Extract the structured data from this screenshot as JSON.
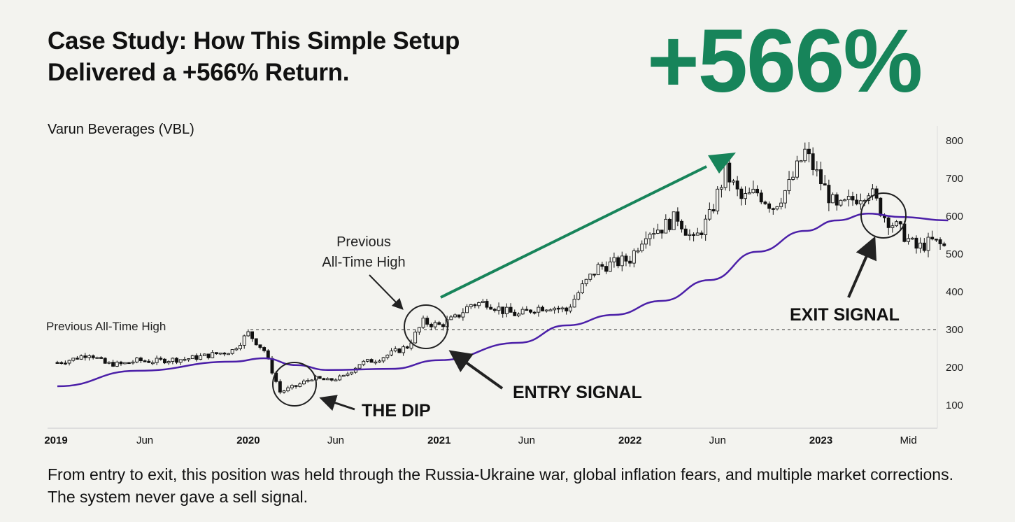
{
  "header": {
    "title_line1": "Case Study: How This Simple Setup",
    "title_line2": "Delivered a +566% Return.",
    "big_number": "+566%"
  },
  "caption": "From entry to exit, this position was held through the Russia-Ukraine war, global inflation fears, and multiple market corrections. The system never gave a sell signal.",
  "colors": {
    "accent_green": "#17845a",
    "moving_average": "#4b1fa8",
    "candles": "#111111",
    "background": "#f3f3ef"
  },
  "chart_data": {
    "type": "candlestick-line",
    "title": "Varun Beverages (VBL)",
    "y_ticks": [
      100,
      200,
      300,
      400,
      500,
      600,
      700,
      800
    ],
    "ylim": [
      50,
      840
    ],
    "x_ticks": [
      {
        "label": "2019",
        "date": "2019-01",
        "bold": true
      },
      {
        "label": "Jun",
        "date": "2019-07",
        "bold": false
      },
      {
        "label": "2020",
        "date": "2020-01",
        "bold": true
      },
      {
        "label": "Jun",
        "date": "2020-07",
        "bold": false
      },
      {
        "label": "2021",
        "date": "2021-01",
        "bold": true
      },
      {
        "label": "Jun",
        "date": "2021-07",
        "bold": false
      },
      {
        "label": "2022",
        "date": "2022-01",
        "bold": true
      },
      {
        "label": "Jun",
        "date": "2022-07",
        "bold": false
      },
      {
        "label": "2023",
        "date": "2023-01",
        "bold": true
      },
      {
        "label": "Mid",
        "date": "2023-07",
        "bold": false
      }
    ],
    "price": [
      [
        "2019-01",
        213
      ],
      [
        "2019-02",
        222
      ],
      [
        "2019-03",
        237
      ],
      [
        "2019-04",
        210
      ],
      [
        "2019-05",
        208
      ],
      [
        "2019-06",
        218
      ],
      [
        "2019-07",
        216
      ],
      [
        "2019-08",
        220
      ],
      [
        "2019-09",
        222
      ],
      [
        "2019-10",
        228
      ],
      [
        "2019-11",
        236
      ],
      [
        "2019-12",
        245
      ],
      [
        "2020-01",
        290
      ],
      [
        "2020-02",
        245
      ],
      [
        "2020-03",
        135
      ],
      [
        "2020-04",
        150
      ],
      [
        "2020-05",
        172
      ],
      [
        "2020-06",
        165
      ],
      [
        "2020-07",
        175
      ],
      [
        "2020-08",
        210
      ],
      [
        "2020-09",
        220
      ],
      [
        "2020-10",
        237
      ],
      [
        "2020-11",
        255
      ],
      [
        "2020-12",
        320
      ],
      [
        "2021-01",
        311
      ],
      [
        "2021-02",
        330
      ],
      [
        "2021-03",
        367
      ],
      [
        "2021-04",
        372
      ],
      [
        "2021-05",
        350
      ],
      [
        "2021-06",
        338
      ],
      [
        "2021-07",
        357
      ],
      [
        "2021-08",
        362
      ],
      [
        "2021-09",
        350
      ],
      [
        "2021-10",
        413
      ],
      [
        "2021-11",
        465
      ],
      [
        "2021-12",
        475
      ],
      [
        "2022-01",
        487
      ],
      [
        "2022-02",
        560
      ],
      [
        "2022-03",
        570
      ],
      [
        "2022-04",
        598
      ],
      [
        "2022-05",
        533
      ],
      [
        "2022-06",
        598
      ],
      [
        "2022-07",
        718
      ],
      [
        "2022-08",
        644
      ],
      [
        "2022-09",
        663
      ],
      [
        "2022-10",
        626
      ],
      [
        "2022-11",
        681
      ],
      [
        "2022-12",
        770
      ],
      [
        "2023-01",
        691
      ],
      [
        "2023-02",
        617
      ],
      [
        "2023-03",
        644
      ],
      [
        "2023-04",
        672
      ],
      [
        "2023-05",
        600
      ],
      [
        "2023-06",
        561
      ],
      [
        "2023-07",
        515
      ],
      [
        "2023-08",
        533
      ],
      [
        "2023-09",
        515
      ]
    ],
    "moving_average": [
      [
        "2019-01",
        150
      ],
      [
        "2019-06",
        191
      ],
      [
        "2019-12",
        215
      ],
      [
        "2020-02",
        224
      ],
      [
        "2020-04",
        206
      ],
      [
        "2020-06",
        193
      ],
      [
        "2020-10",
        196
      ],
      [
        "2021-01",
        219
      ],
      [
        "2021-06",
        265
      ],
      [
        "2021-09",
        311
      ],
      [
        "2021-12",
        339
      ],
      [
        "2022-03",
        376
      ],
      [
        "2022-06",
        431
      ],
      [
        "2022-09",
        506
      ],
      [
        "2022-12",
        561
      ],
      [
        "2023-02",
        589
      ],
      [
        "2023-04",
        607
      ],
      [
        "2023-06",
        598
      ],
      [
        "2023-09",
        589
      ]
    ],
    "reference_line": {
      "value": 300,
      "label": "Previous All-Time High"
    },
    "annotations": {
      "previous_high": "Previous\nAll-Time High",
      "previous_high_line1": "Previous",
      "previous_high_line2": "All-Time High",
      "dip": "THE DIP",
      "entry": "ENTRY SIGNAL",
      "exit": "EXIT SIGNAL"
    }
  }
}
